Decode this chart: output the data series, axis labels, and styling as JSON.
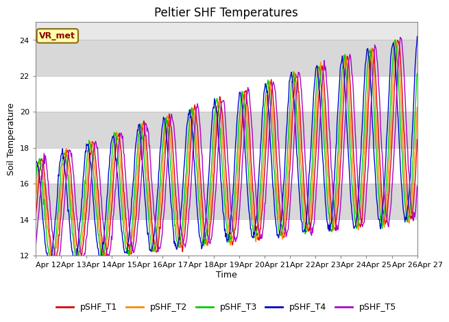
{
  "title": "Peltier SHF Temperatures",
  "xlabel": "Time",
  "ylabel": "Soil Temperature",
  "ylim": [
    12,
    25
  ],
  "yticks": [
    12,
    14,
    16,
    18,
    20,
    22,
    24
  ],
  "xtick_labels": [
    "Apr 12",
    "Apr 13",
    "Apr 14",
    "Apr 15",
    "Apr 16",
    "Apr 17",
    "Apr 18",
    "Apr 19",
    "Apr 20",
    "Apr 21",
    "Apr 22",
    "Apr 23",
    "Apr 24",
    "Apr 25",
    "Apr 26",
    "Apr 27"
  ],
  "series_names": [
    "pSHF_T1",
    "pSHF_T2",
    "pSHF_T3",
    "pSHF_T4",
    "pSHF_T5"
  ],
  "series_colors": [
    "#dd0000",
    "#ff8800",
    "#00cc00",
    "#0000cc",
    "#aa00cc"
  ],
  "series_lw": [
    1.0,
    1.0,
    1.0,
    1.0,
    1.0
  ],
  "phase_hours": [
    0.0,
    1.5,
    3.0,
    5.0,
    -2.5
  ],
  "annotation_text": "VR_met",
  "bg_color": "#e8e8e8",
  "grid_color": "#ffffff",
  "title_fontsize": 12,
  "label_fontsize": 9,
  "tick_fontsize": 8,
  "legend_fontsize": 9
}
